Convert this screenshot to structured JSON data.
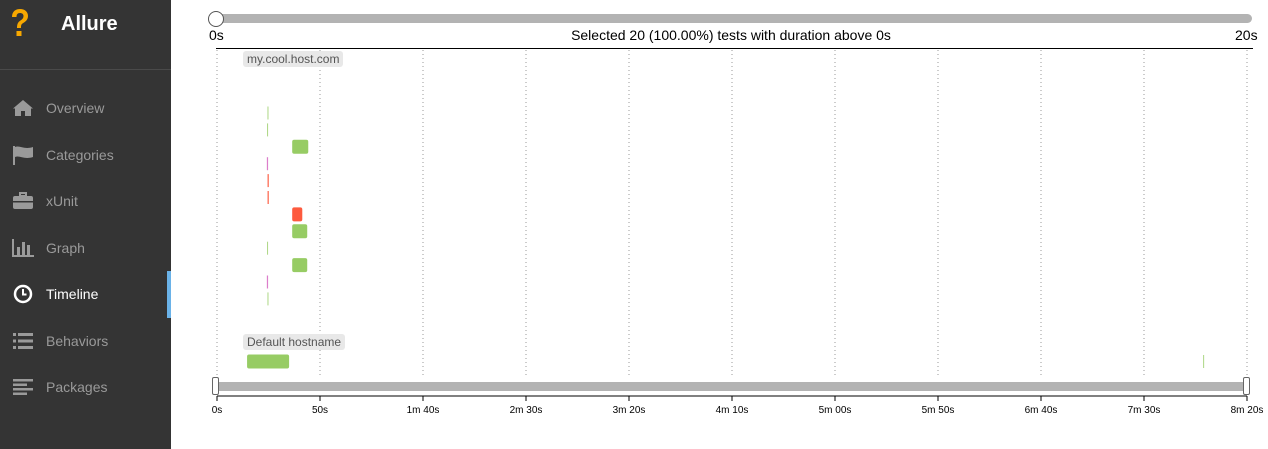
{
  "app": {
    "title": "Allure"
  },
  "sidebar": {
    "items": [
      {
        "label": "Overview",
        "icon": "home-icon",
        "active": false
      },
      {
        "label": "Categories",
        "icon": "flag-icon",
        "active": false
      },
      {
        "label": "xUnit",
        "icon": "briefcase-icon",
        "active": false
      },
      {
        "label": "Graph",
        "icon": "bar-chart-icon",
        "active": false
      },
      {
        "label": "Timeline",
        "icon": "clock-icon",
        "active": true
      },
      {
        "label": "Behaviors",
        "icon": "list-icon",
        "active": false
      },
      {
        "label": "Packages",
        "icon": "align-left-icon",
        "active": false
      }
    ]
  },
  "duration_filter": {
    "min_label": "0s",
    "max_label": "20s",
    "selected_text": "Selected 20 (100.00%) tests with duration above 0s"
  },
  "timeline": {
    "x_ticks": [
      "0s",
      "50s",
      "1m 40s",
      "2m 30s",
      "3m 20s",
      "4m 10s",
      "5m 00s",
      "5m 50s",
      "6m 40s",
      "7m 30s",
      "8m 20s"
    ],
    "hosts": [
      {
        "name": "my.cool.host.com",
        "bars": [
          {
            "row": 0,
            "start": 24.5,
            "end": 24.8,
            "status": "passed"
          },
          {
            "row": 1,
            "start": 24.3,
            "end": 24.8,
            "status": "passed"
          },
          {
            "row": 2,
            "start": 36.5,
            "end": 44.3,
            "status": "passed"
          },
          {
            "row": 3,
            "start": 24.2,
            "end": 24.8,
            "status": "broken"
          },
          {
            "row": 4,
            "start": 24.5,
            "end": 25.2,
            "status": "failed"
          },
          {
            "row": 5,
            "start": 24.5,
            "end": 25.2,
            "status": "failed"
          },
          {
            "row": 6,
            "start": 36.5,
            "end": 41.4,
            "status": "failed"
          },
          {
            "row": 7,
            "start": 36.5,
            "end": 43.8,
            "status": "passed"
          },
          {
            "row": 8,
            "start": 24.3,
            "end": 24.5,
            "status": "passed"
          },
          {
            "row": 9,
            "start": 36.5,
            "end": 43.8,
            "status": "passed"
          },
          {
            "row": 10,
            "start": 24.2,
            "end": 24.8,
            "status": "broken"
          },
          {
            "row": 11,
            "start": 24.5,
            "end": 24.8,
            "status": "passed"
          }
        ]
      },
      {
        "name": "Default hostname",
        "bars": [
          {
            "row": 0,
            "start": 14.6,
            "end": 35.0,
            "status": "passed"
          },
          {
            "row": 0,
            "start": 478.7,
            "end": 479.0,
            "status": "passed"
          }
        ]
      }
    ],
    "colors": {
      "passed": "#97cc64",
      "failed": "#fd5a3e",
      "broken": "#d35ebe",
      "grid": "#999999"
    }
  }
}
